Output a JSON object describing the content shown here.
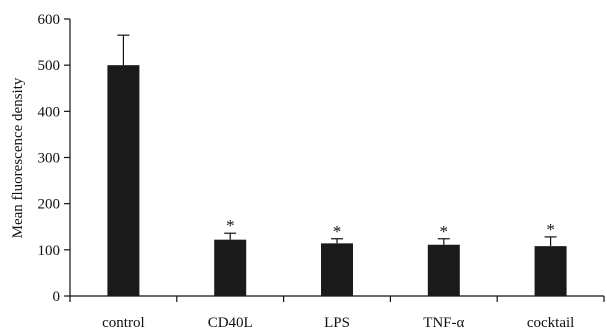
{
  "chart_data": {
    "type": "bar",
    "categories": [
      "control",
      "CD40L",
      "LPS",
      "TNF-α",
      "cocktail"
    ],
    "values": [
      500,
      122,
      114,
      111,
      108
    ],
    "errors": [
      65,
      14,
      10,
      13,
      20
    ],
    "significance": [
      "",
      "*",
      "*",
      "*",
      "*"
    ],
    "ylabel": "Mean fluorescence density",
    "xlabel": "",
    "ylim": [
      0,
      600
    ],
    "yticks": [
      0,
      100,
      200,
      300,
      400,
      500,
      600
    ],
    "grid": false,
    "legend": "none",
    "bar_color": "#1a1a1a"
  }
}
